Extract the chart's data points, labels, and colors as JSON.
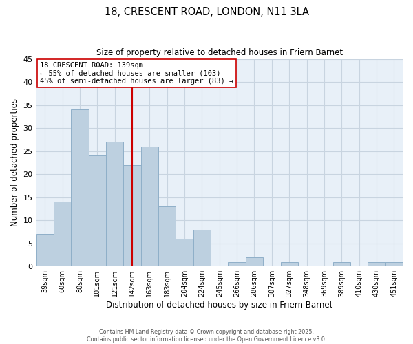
{
  "title": "18, CRESCENT ROAD, LONDON, N11 3LA",
  "subtitle": "Size of property relative to detached houses in Friern Barnet",
  "xlabel": "Distribution of detached houses by size in Friern Barnet",
  "ylabel": "Number of detached properties",
  "bar_labels": [
    "39sqm",
    "60sqm",
    "80sqm",
    "101sqm",
    "121sqm",
    "142sqm",
    "163sqm",
    "183sqm",
    "204sqm",
    "224sqm",
    "245sqm",
    "266sqm",
    "286sqm",
    "307sqm",
    "327sqm",
    "348sqm",
    "369sqm",
    "389sqm",
    "410sqm",
    "430sqm",
    "451sqm"
  ],
  "bar_values": [
    7,
    14,
    34,
    24,
    27,
    22,
    26,
    13,
    6,
    8,
    0,
    1,
    2,
    0,
    1,
    0,
    0,
    1,
    0,
    1,
    1
  ],
  "bar_color": "#bdd0e0",
  "bar_edge_color": "#8fafc8",
  "vline_x_index": 5,
  "vline_color": "#cc0000",
  "ylim": [
    0,
    45
  ],
  "yticks": [
    0,
    5,
    10,
    15,
    20,
    25,
    30,
    35,
    40,
    45
  ],
  "annotation_title": "18 CRESCENT ROAD: 139sqm",
  "annotation_line1": "← 55% of detached houses are smaller (103)",
  "annotation_line2": "45% of semi-detached houses are larger (83) →",
  "annotation_box_facecolor": "#ffffff",
  "annotation_box_edge": "#cc0000",
  "grid_color": "#c8d4e0",
  "plot_bg_color": "#e8f0f8",
  "fig_bg_color": "#ffffff",
  "footer1": "Contains HM Land Registry data © Crown copyright and database right 2025.",
  "footer2": "Contains public sector information licensed under the Open Government Licence v3.0."
}
